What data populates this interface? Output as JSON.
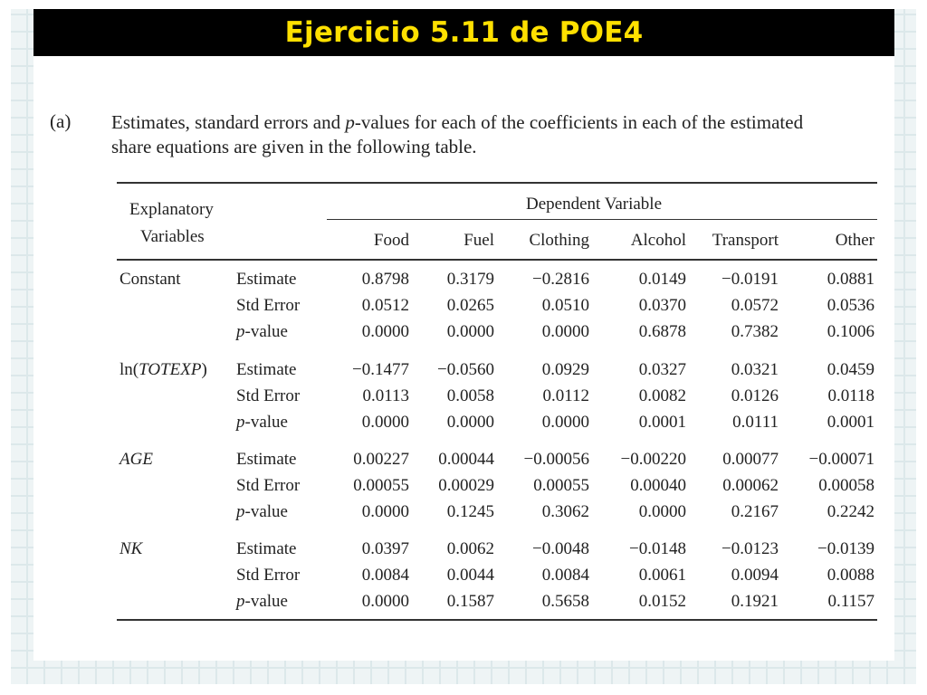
{
  "title": "Ejercicio 5.11 de POE4",
  "intro": {
    "label": "(a)",
    "line1_before": "Estimates, standard errors and ",
    "line1_italic": "p",
    "line1_after": "-values for each of the coefficients in each of the estimated",
    "line2": "share equations are given in the following table."
  },
  "table": {
    "explanatory_header": [
      "Explanatory",
      "Variables"
    ],
    "dependent_header": "Dependent Variable",
    "columns": [
      "Food",
      "Fuel",
      "Clothing",
      "Alcohol",
      "Transport",
      "Other"
    ],
    "stat_labels": [
      "Estimate",
      "Std Error",
      "-value"
    ],
    "stat_p": "p",
    "groups": [
      {
        "var_label": "Constant",
        "rows": [
          [
            "0.8798",
            "0.3179",
            "−0.2816",
            "0.0149",
            "−0.0191",
            "0.0881"
          ],
          [
            "0.0512",
            "0.0265",
            "0.0510",
            "0.0370",
            "0.0572",
            "0.0536"
          ],
          [
            "0.0000",
            "0.0000",
            "0.0000",
            "0.6878",
            "0.7382",
            "0.1006"
          ]
        ]
      },
      {
        "var_label_prefix": "ln(",
        "var_label_italic": "TOTEXP",
        "var_label_suffix": ")",
        "rows": [
          [
            "−0.1477",
            "−0.0560",
            "0.0929",
            "0.0327",
            "0.0321",
            "0.0459"
          ],
          [
            "0.0113",
            "0.0058",
            "0.0112",
            "0.0082",
            "0.0126",
            "0.0118"
          ],
          [
            "0.0000",
            "0.0000",
            "0.0000",
            "0.0001",
            "0.0111",
            "0.0001"
          ]
        ]
      },
      {
        "var_label_italic": "AGE",
        "rows": [
          [
            "0.00227",
            "0.00044",
            "−0.00056",
            "−0.00220",
            "0.00077",
            "−0.00071"
          ],
          [
            "0.00055",
            "0.00029",
            "0.00055",
            "0.00040",
            "0.00062",
            "0.00058"
          ],
          [
            "0.0000",
            "0.1245",
            "0.3062",
            "0.0000",
            "0.2167",
            "0.2242"
          ]
        ]
      },
      {
        "var_label_italic": "NK",
        "rows": [
          [
            "0.0397",
            "0.0062",
            "−0.0048",
            "−0.0148",
            "−0.0123",
            "−0.0139"
          ],
          [
            "0.0084",
            "0.0044",
            "0.0084",
            "0.0061",
            "0.0094",
            "0.0088"
          ],
          [
            "0.0000",
            "0.1587",
            "0.5658",
            "0.0152",
            "0.1921",
            "0.1157"
          ]
        ]
      }
    ]
  }
}
